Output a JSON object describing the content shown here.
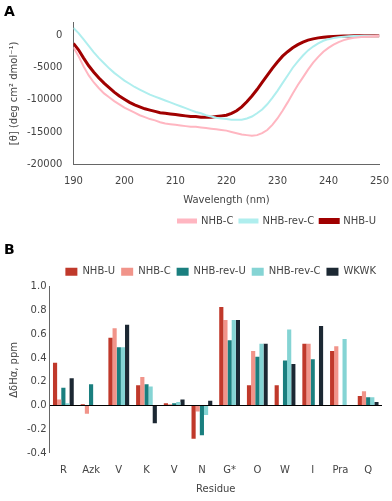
{
  "chart_data": [
    {
      "type": "line",
      "title": "A",
      "x": [
        190,
        191,
        192,
        193,
        194,
        195,
        196,
        197,
        198,
        199,
        200,
        201,
        202,
        203,
        204,
        205,
        206,
        207,
        208,
        209,
        210,
        211,
        212,
        213,
        214,
        215,
        216,
        217,
        218,
        219,
        220,
        221,
        222,
        223,
        224,
        225,
        226,
        227,
        228,
        229,
        230,
        231,
        232,
        233,
        234,
        235,
        236,
        237,
        238,
        239,
        240,
        241,
        242,
        243,
        244,
        245,
        246,
        247,
        248,
        249,
        250
      ],
      "series": [
        {
          "name": "NHB-C",
          "color": "#FFB6C1",
          "values": [
            -1800,
            -3200,
            -4800,
            -6200,
            -7300,
            -8200,
            -9000,
            -9600,
            -10200,
            -10700,
            -11200,
            -11600,
            -12000,
            -12400,
            -12700,
            -13000,
            -13200,
            -13500,
            -13700,
            -13800,
            -13900,
            -14000,
            -14100,
            -14200,
            -14200,
            -14300,
            -14400,
            -14500,
            -14600,
            -14700,
            -14800,
            -15000,
            -15200,
            -15400,
            -15500,
            -15600,
            -15500,
            -15200,
            -14700,
            -13900,
            -12900,
            -11700,
            -10400,
            -9000,
            -7700,
            -6500,
            -5300,
            -4200,
            -3300,
            -2500,
            -1900,
            -1400,
            -1000,
            -700,
            -500,
            -350,
            -250,
            -180,
            -120,
            -70,
            -30
          ]
        },
        {
          "name": "NHB-rev-C",
          "color": "#AFEEEE",
          "values": [
            1200,
            400,
            -600,
            -1600,
            -2600,
            -3500,
            -4300,
            -5100,
            -5800,
            -6400,
            -7000,
            -7500,
            -8000,
            -8400,
            -8800,
            -9200,
            -9500,
            -9800,
            -10100,
            -10400,
            -10700,
            -11000,
            -11300,
            -11600,
            -11900,
            -12100,
            -12400,
            -12600,
            -12800,
            -12900,
            -13000,
            -13100,
            -13100,
            -13100,
            -12900,
            -12600,
            -12100,
            -11500,
            -10700,
            -9700,
            -8600,
            -7400,
            -6200,
            -5000,
            -4000,
            -3100,
            -2300,
            -1700,
            -1200,
            -800,
            -550,
            -380,
            -260,
            -170,
            -110,
            -70,
            -45,
            -28,
            -15,
            -7,
            0
          ]
        },
        {
          "name": "NHB-U",
          "color": "#A00000",
          "values": [
            -1200,
            -2200,
            -3500,
            -4700,
            -5700,
            -6600,
            -7400,
            -8100,
            -8800,
            -9400,
            -9900,
            -10400,
            -10800,
            -11100,
            -11400,
            -11600,
            -11800,
            -12000,
            -12100,
            -12200,
            -12300,
            -12400,
            -12500,
            -12600,
            -12600,
            -12700,
            -12700,
            -12700,
            -12600,
            -12500,
            -12400,
            -12100,
            -11700,
            -11100,
            -10300,
            -9400,
            -8400,
            -7300,
            -6200,
            -5100,
            -4100,
            -3200,
            -2500,
            -1900,
            -1400,
            -1000,
            -700,
            -500,
            -350,
            -250,
            -180,
            -130,
            -90,
            -60,
            -40,
            -30,
            -20,
            -10,
            -5,
            -3,
            0
          ]
        }
      ],
      "xlabel": "Wavelength (nm)",
      "ylabel": "[θ] (deg cm² dmol⁻¹)",
      "xlim": [
        190,
        250
      ],
      "ylim": [
        -20000,
        2000
      ],
      "xticks": [
        190,
        200,
        210,
        220,
        230,
        240,
        250
      ],
      "yticks": [
        -20000,
        -15000,
        -10000,
        -5000,
        0
      ],
      "grid": false,
      "legend": "lower right"
    },
    {
      "type": "bar",
      "title": "B",
      "categories": [
        "R",
        "Azk",
        "V",
        "K",
        "V",
        "N",
        "G*",
        "O",
        "W",
        "I",
        "Pra",
        "Q"
      ],
      "series": [
        {
          "name": "NHB-U",
          "color": "#C0392B",
          "values": [
            0.36,
            0.01,
            0.57,
            0.17,
            0.02,
            -0.28,
            0.83,
            0.17,
            0.17,
            0.52,
            0.46,
            0.08
          ]
        },
        {
          "name": "NHB-C",
          "color": "#F1948A",
          "values": [
            0.05,
            -0.07,
            0.65,
            0.24,
            0.01,
            -0.05,
            0.72,
            0.46,
            0.0,
            0.52,
            0.5,
            0.12
          ]
        },
        {
          "name": "NHB-rev-U",
          "color": "#1A7F7F",
          "values": [
            0.15,
            0.18,
            0.49,
            0.18,
            0.02,
            -0.25,
            0.55,
            0.41,
            0.38,
            0.39,
            null,
            0.07
          ]
        },
        {
          "name": "NHB-rev-C",
          "color": "#85D4D4",
          "values": [
            0.02,
            0.0,
            0.49,
            0.16,
            0.03,
            -0.08,
            0.72,
            0.52,
            0.64,
            null,
            0.56,
            0.07
          ]
        },
        {
          "name": "WKWK",
          "color": "#1C2833",
          "values": [
            0.23,
            null,
            0.68,
            -0.15,
            0.05,
            0.04,
            0.72,
            0.52,
            0.35,
            0.67,
            null,
            0.03
          ]
        }
      ],
      "xlabel": "Residue",
      "ylabel": "ΔδHα, ppm",
      "ylim": [
        -0.4,
        1.0
      ],
      "yticks": [
        -0.4,
        -0.2,
        {
          "value": 0.0,
          "label": "0.0"
        },
        0.2,
        0.4,
        0.6,
        0.8,
        {
          "value": 1.0,
          "label": "1.0"
        }
      ],
      "grid": false,
      "legend": "upper right"
    }
  ]
}
